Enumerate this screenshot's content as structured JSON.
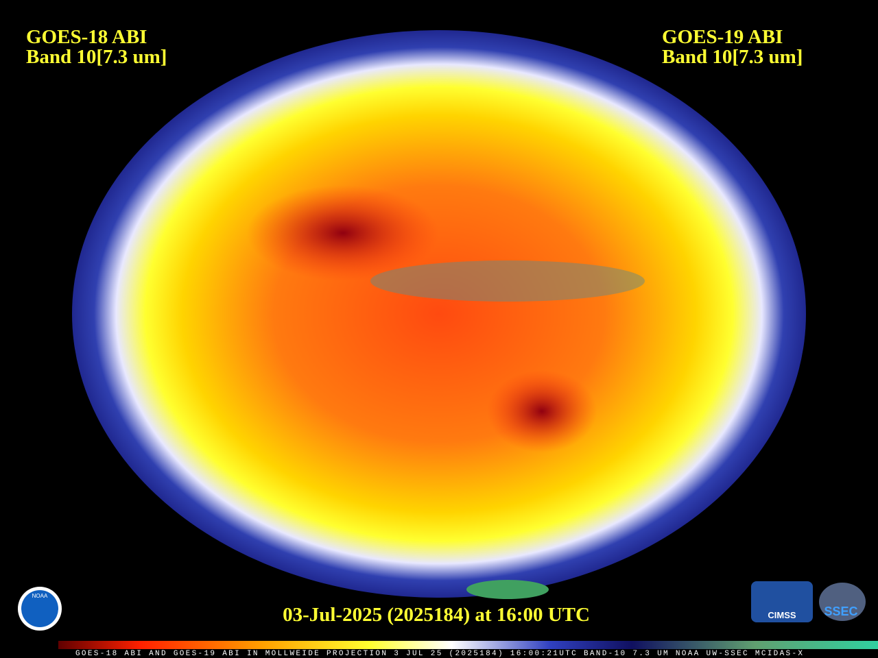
{
  "header": {
    "left": [
      "GOES-18 ABI",
      "Band 10[7.3 um]"
    ],
    "right": [
      "GOES-19 ABI",
      "Band 10[7.3 um]"
    ]
  },
  "timestamp": "03-Jul-2025 (2025184) at 16:00 UTC",
  "footer": "GOES-18 ABI AND GOES-19 ABI IN MOLLWEIDE PROJECTION 3 JUL 25 (2025184) 16:00:21UTC BAND-10 7.3 UM NOAA UW-SSEC MCIDAS-X",
  "logos": {
    "noaa": "NOAA",
    "cimss": "CIMSS",
    "ssec": "SSEC"
  }
}
